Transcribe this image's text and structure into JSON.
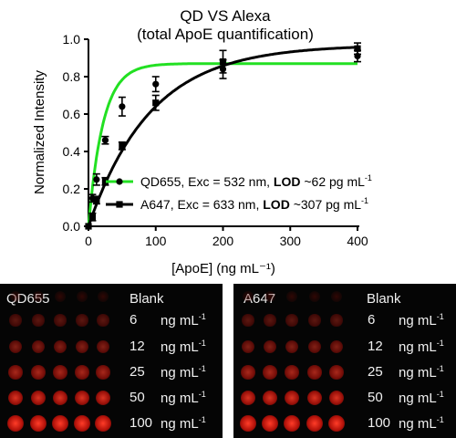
{
  "chart_data": {
    "type": "scatter",
    "title": "QD VS Alexa",
    "subtitle": "(total ApoE quantification)",
    "xlabel": "[ApoE] (ng mL⁻¹)",
    "ylabel": "Normalized Intensity",
    "xlim": [
      0,
      400
    ],
    "ylim": [
      0,
      1.0
    ],
    "x_ticks": [
      "0",
      "100",
      "200",
      "300",
      "400"
    ],
    "y_ticks": [
      "0.0",
      "0.2",
      "0.4",
      "0.6",
      "0.8",
      "1.0"
    ],
    "grid": false,
    "legend_position": "lower-right",
    "series": [
      {
        "name_main": "QD655, Exc = 532 nm, ",
        "name_bold": "LOD",
        "name_tail": " ~62 pg mL",
        "name_sup": "-1",
        "color": "#22e022",
        "marker": "circle",
        "x": [
          0,
          6,
          12,
          25,
          50,
          100,
          200,
          400
        ],
        "y": [
          0.0,
          0.15,
          0.25,
          0.46,
          0.64,
          0.76,
          0.84,
          0.91
        ],
        "err": [
          0.0,
          0.02,
          0.03,
          0.02,
          0.05,
          0.04,
          0.05,
          0.03
        ],
        "fit": {
          "ymax": 0.87,
          "k": 0.046
        }
      },
      {
        "name_main": "A647,  Exc = 633 nm, ",
        "name_bold": "LOD",
        "name_tail": " ~307 pg mL",
        "name_sup": "-1",
        "color": "#000000",
        "marker": "square",
        "x": [
          0,
          6,
          12,
          25,
          50,
          100,
          200,
          400
        ],
        "y": [
          0.0,
          0.05,
          0.14,
          0.24,
          0.43,
          0.66,
          0.88,
          0.95
        ],
        "err": [
          0.0,
          0.02,
          0.02,
          0.02,
          0.02,
          0.04,
          0.06,
          0.03
        ],
        "fit": {
          "ymax": 0.97,
          "k": 0.0108
        }
      }
    ]
  },
  "panels": {
    "left_title": "QD655",
    "right_title": "A647",
    "blank_label": "Blank",
    "concentrations": [
      "6",
      "12",
      "25",
      "50",
      "100"
    ],
    "unit_main": "ng mL",
    "unit_sup": "-1",
    "spot_color": "#ff2a1a"
  }
}
